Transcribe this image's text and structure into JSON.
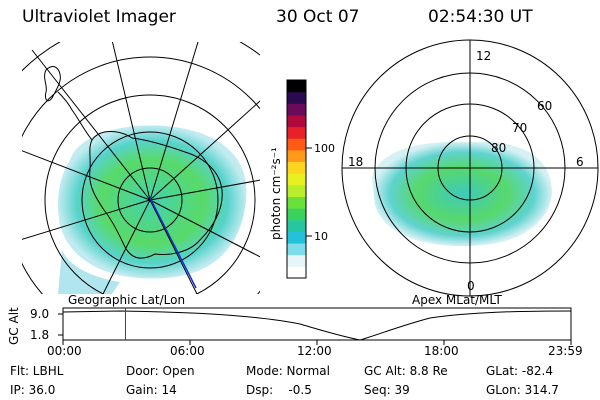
{
  "header": {
    "title": "Ultraviolet Imager",
    "date": "30 Oct 07",
    "time": "02:54:30 UT"
  },
  "left_map": {
    "label": "Geographic Lat/Lon"
  },
  "right_map": {
    "label": "Apex MLat/MLT",
    "mlt_labels": {
      "top": "12",
      "left": "18",
      "right": "6",
      "bottom": "0"
    },
    "lat_labels": [
      "60",
      "70",
      "80"
    ]
  },
  "colorbar": {
    "unit_label": "photon cm⁻²s⁻¹",
    "ticks": [
      "100",
      "10"
    ],
    "colors": [
      "#ffffff",
      "#e6f5f7",
      "#7fdcea",
      "#23c2d8",
      "#26c7a0",
      "#3ad25a",
      "#6ae03a",
      "#b8ee2c",
      "#e8f020",
      "#fbd51e",
      "#ff9a1a",
      "#ff5a14",
      "#e8202a",
      "#b00a3c",
      "#6a0a5a",
      "#2a0a50",
      "#000000"
    ]
  },
  "timeline": {
    "ylabel": "GC Alt",
    "yticks": [
      "9.0",
      "1.8"
    ],
    "xticks": [
      "00:00",
      "06:00",
      "12:00",
      "18:00",
      "23:59"
    ],
    "marker_fraction": 0.123,
    "marker_color": "#e00000"
  },
  "footer": {
    "rows": [
      [
        "Flt: LBHL",
        "Door: Open",
        "Mode: Normal",
        "GC Alt: 8.8 Re",
        "GLat: -82.4"
      ],
      [
        "IP: 36.0",
        "Gain: 14",
        "Dsp:    -0.5",
        "Seq: 39",
        "GLon: 314.7"
      ]
    ]
  }
}
